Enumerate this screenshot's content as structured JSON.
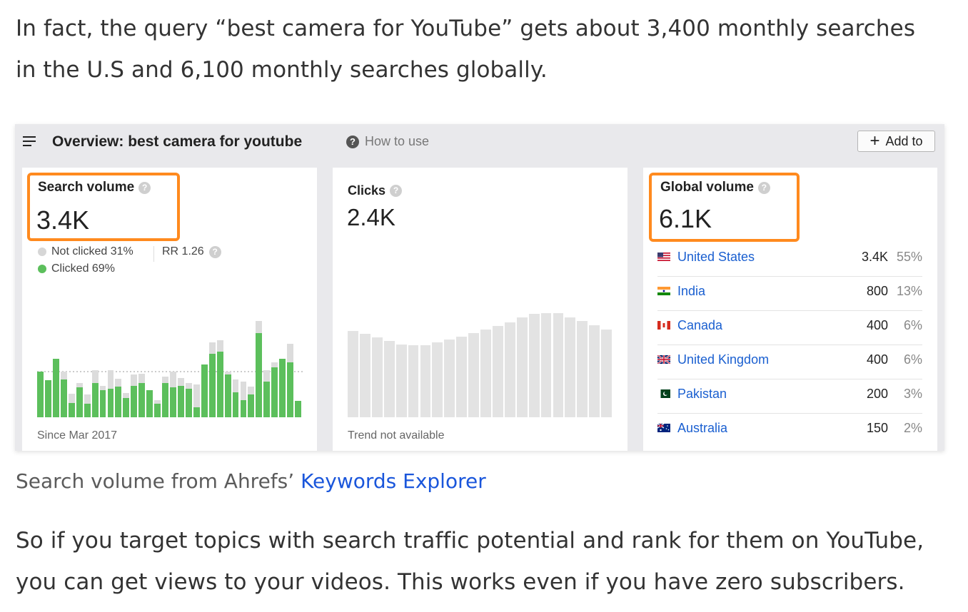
{
  "article": {
    "para1": [
      "In fact, the query “best camera for YouTube” gets about 3,400 monthly searches",
      "in the U.S and 6,100 monthly searches globally."
    ],
    "caption_prefix": "Search volume from Ahrefs’ ",
    "caption_link": "Keywords Explorer",
    "para2": [
      "So if you target topics with search traffic potential and rank for them on YouTube,",
      "you can get views to your videos. This works even if you have zero subscribers."
    ]
  },
  "overview": {
    "title": "Overview: best camera for youtube",
    "how_to_use": "How to use",
    "add_to": "Add to",
    "help_glyph": "?",
    "plus_glyph": "+"
  },
  "search_volume": {
    "label": "Search volume",
    "value": "3.4K",
    "not_clicked": "Not clicked 31%",
    "clicked": "Clicked 69%",
    "rr": "RR 1.26",
    "since": "Since Mar 2017",
    "colors": {
      "clicked": "#5cbf5c",
      "not_clicked": "#dcdcdc",
      "highlight": "#ff8a1e"
    }
  },
  "clicks": {
    "label": "Clicks",
    "value": "2.4K",
    "footnote": "Trend not available"
  },
  "global_volume": {
    "label": "Global volume",
    "value": "6.1K",
    "countries": [
      {
        "name": "United States",
        "volume": "3.4K",
        "pct": "55%",
        "flag": "us-flag-icon"
      },
      {
        "name": "India",
        "volume": "800",
        "pct": "13%",
        "flag": "india-flag-icon"
      },
      {
        "name": "Canada",
        "volume": "400",
        "pct": "6%",
        "flag": "canada-flag-icon"
      },
      {
        "name": "United Kingdom",
        "volume": "400",
        "pct": "6%",
        "flag": "uk-flag-icon"
      },
      {
        "name": "Pakistan",
        "volume": "200",
        "pct": "3%",
        "flag": "pakistan-flag-icon"
      },
      {
        "name": "Australia",
        "volume": "150",
        "pct": "2%",
        "flag": "australia-flag-icon"
      }
    ]
  },
  "chart_data": [
    {
      "type": "bar",
      "series": [
        {
          "name": "Clicked",
          "values": [
            64,
            52,
            82,
            53,
            20,
            42,
            19,
            48,
            38,
            40,
            43,
            27,
            44,
            48,
            38,
            19,
            48,
            42,
            44,
            40,
            14,
            74,
            89,
            92,
            60,
            35,
            24,
            32,
            118,
            50,
            70,
            82,
            77,
            23
          ]
        },
        {
          "name": "Not clicked",
          "values": [
            0,
            0,
            0,
            11,
            13,
            6,
            13,
            18,
            6,
            26,
            11,
            7,
            16,
            13,
            0,
            5,
            9,
            22,
            11,
            8,
            32,
            0,
            16,
            16,
            4,
            18,
            26,
            11,
            17,
            16,
            7,
            0,
            26,
            0
          ]
        }
      ],
      "x_range": [
        "Mar 2017",
        ""
      ]
    },
    {
      "type": "bar",
      "values": [
        121,
        117,
        112,
        107,
        102,
        101,
        101,
        105,
        109,
        113,
        118,
        123,
        128,
        133,
        140,
        145,
        146,
        146,
        140,
        135,
        129,
        123
      ]
    }
  ]
}
